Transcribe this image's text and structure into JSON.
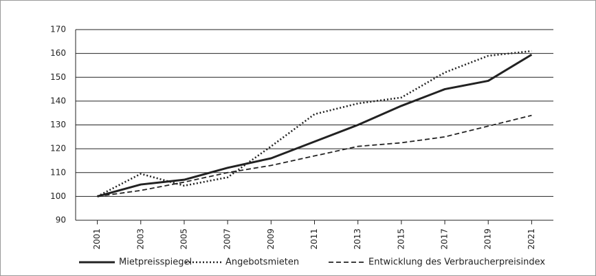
{
  "chart_data": {
    "type": "line",
    "x": [
      2001,
      2003,
      2005,
      2007,
      2009,
      2011,
      2013,
      2015,
      2017,
      2019,
      2021
    ],
    "xlim": [
      2000,
      2022
    ],
    "xticks": [
      2001,
      2003,
      2005,
      2007,
      2009,
      2011,
      2013,
      2015,
      2017,
      2019,
      2021
    ],
    "ylim": [
      90,
      170
    ],
    "yticks": [
      90,
      100,
      110,
      120,
      130,
      140,
      150,
      160,
      170
    ],
    "grid": true,
    "legend": "bottom",
    "series": [
      {
        "name": "Mietpreisspiegel",
        "color": "#222222",
        "style": "solid",
        "values": [
          100,
          105,
          107,
          112,
          116,
          123,
          130,
          138,
          145,
          148.5,
          159.5
        ]
      },
      {
        "name": "Angebotsmieten",
        "color": "#222222",
        "style": "dotted",
        "values": [
          100,
          109.5,
          104.5,
          108,
          121,
          134.5,
          139,
          141.5,
          152,
          159,
          161
        ]
      },
      {
        "name": "Entwicklung des Verbraucherpreisindex",
        "color": "#222222",
        "style": "dashed",
        "values": [
          100,
          102.5,
          106,
          110,
          113,
          117,
          121,
          122.5,
          125,
          129.5,
          134
        ]
      }
    ]
  }
}
